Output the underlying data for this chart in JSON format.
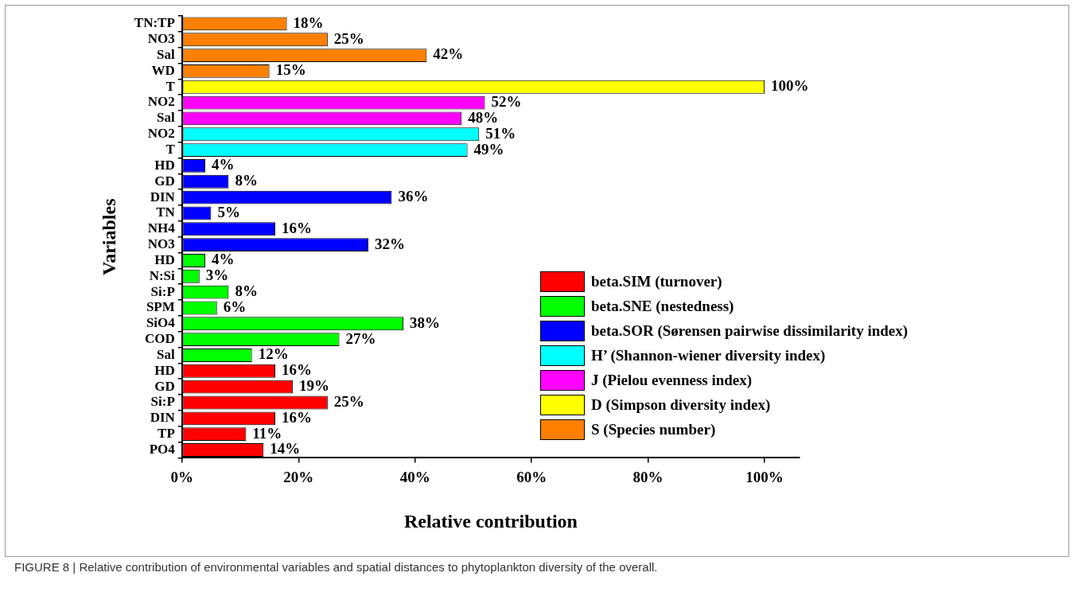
{
  "chart_data": {
    "type": "bar",
    "orientation": "horizontal",
    "stacked": true,
    "xlabel": "Relative contribution",
    "ylabel": "Variables",
    "categories": [
      "TN:TP",
      "NO3",
      "Sal",
      "WD",
      "T",
      "NO2",
      "Sal",
      "NO2",
      "T",
      "HD",
      "GD",
      "DIN",
      "TN",
      "NH4",
      "NO3",
      "HD",
      "N:Si",
      "Si:P",
      "SPM",
      "SiO4",
      "COD",
      "Sal",
      "HD",
      "GD",
      "Si:P",
      "DIN",
      "TP",
      "PO4"
    ],
    "xlim": [
      0,
      106
    ],
    "xticks": [
      {
        "value": 0,
        "label": "0%"
      },
      {
        "value": 20,
        "label": "20%"
      },
      {
        "value": 40,
        "label": "40%"
      },
      {
        "value": 60,
        "label": "60%"
      },
      {
        "value": 80,
        "label": "80%"
      },
      {
        "value": 100,
        "label": "100%"
      }
    ],
    "grid": false,
    "legend": "bottom right",
    "series": [
      {
        "name": "beta.SIM (turnover)",
        "color": "#ff0000",
        "values": [
          null,
          null,
          null,
          null,
          null,
          null,
          null,
          null,
          null,
          null,
          null,
          null,
          null,
          null,
          null,
          null,
          null,
          null,
          null,
          null,
          null,
          null,
          16,
          19,
          25,
          16,
          11,
          14
        ],
        "value_labels": [
          null,
          null,
          null,
          null,
          null,
          null,
          null,
          null,
          null,
          null,
          null,
          null,
          null,
          null,
          null,
          null,
          null,
          null,
          null,
          null,
          null,
          null,
          "16%",
          "19%",
          "25%",
          "16%",
          "11%",
          "14%"
        ]
      },
      {
        "name": "beta.SNE (nestedness)",
        "color": "#00ff00",
        "values": [
          null,
          null,
          null,
          null,
          null,
          null,
          null,
          null,
          null,
          null,
          null,
          null,
          null,
          null,
          null,
          4,
          3,
          8,
          6,
          38,
          27,
          12,
          null,
          null,
          null,
          null,
          null,
          null
        ],
        "value_labels": [
          null,
          null,
          null,
          null,
          null,
          null,
          null,
          null,
          null,
          null,
          null,
          null,
          null,
          null,
          null,
          "4%",
          "3%",
          "8%",
          "6%",
          "38%",
          "27%",
          "12%",
          null,
          null,
          null,
          null,
          null,
          null
        ]
      },
      {
        "name": "beta.SOR (Sørensen pairwise dissimilarity index)",
        "color": "#0000ff",
        "values": [
          null,
          null,
          null,
          null,
          null,
          null,
          null,
          null,
          null,
          4,
          8,
          36,
          5,
          16,
          32,
          null,
          null,
          null,
          null,
          null,
          null,
          null,
          null,
          null,
          null,
          null,
          null,
          null
        ],
        "value_labels": [
          null,
          null,
          null,
          null,
          null,
          null,
          null,
          null,
          null,
          "4%",
          "8%",
          "36%",
          "5%",
          "16%",
          "32%",
          null,
          null,
          null,
          null,
          null,
          null,
          null,
          null,
          null,
          null,
          null,
          null,
          null
        ]
      },
      {
        "name": "H’ (Shannon-wiener diversity index)",
        "color": "#00ffff",
        "values": [
          null,
          null,
          null,
          null,
          null,
          null,
          null,
          51,
          49,
          null,
          null,
          null,
          null,
          null,
          null,
          null,
          null,
          null,
          null,
          null,
          null,
          null,
          null,
          null,
          null,
          null,
          null,
          null
        ],
        "value_labels": [
          null,
          null,
          null,
          null,
          null,
          null,
          null,
          "51%",
          "49%",
          null,
          null,
          null,
          null,
          null,
          null,
          null,
          null,
          null,
          null,
          null,
          null,
          null,
          null,
          null,
          null,
          null,
          null,
          null
        ]
      },
      {
        "name": "J (Pielou evenness index)",
        "color": "#ff00ff",
        "values": [
          null,
          null,
          null,
          null,
          null,
          52,
          48,
          null,
          null,
          null,
          null,
          null,
          null,
          null,
          null,
          null,
          null,
          null,
          null,
          null,
          null,
          null,
          null,
          null,
          null,
          null,
          null,
          null
        ],
        "value_labels": [
          null,
          null,
          null,
          null,
          null,
          "52%",
          "48%",
          null,
          null,
          null,
          null,
          null,
          null,
          null,
          null,
          null,
          null,
          null,
          null,
          null,
          null,
          null,
          null,
          null,
          null,
          null,
          null,
          null
        ]
      },
      {
        "name": "D (Simpson diversity index)",
        "color": "#ffff00",
        "values": [
          null,
          null,
          null,
          null,
          100,
          null,
          null,
          null,
          null,
          null,
          null,
          null,
          null,
          null,
          null,
          null,
          null,
          null,
          null,
          null,
          null,
          null,
          null,
          null,
          null,
          null,
          null,
          null
        ],
        "value_labels": [
          null,
          null,
          null,
          null,
          "100%",
          null,
          null,
          null,
          null,
          null,
          null,
          null,
          null,
          null,
          null,
          null,
          null,
          null,
          null,
          null,
          null,
          null,
          null,
          null,
          null,
          null,
          null,
          null
        ]
      },
      {
        "name": "S (Species number)",
        "color": "#ff8000",
        "values": [
          18,
          25,
          42,
          15,
          null,
          null,
          null,
          null,
          null,
          null,
          null,
          null,
          null,
          null,
          null,
          null,
          null,
          null,
          null,
          null,
          null,
          null,
          null,
          null,
          null,
          null,
          null,
          null
        ],
        "value_labels": [
          "18%",
          "25%",
          "42%",
          "15%",
          null,
          null,
          null,
          null,
          null,
          null,
          null,
          null,
          null,
          null,
          null,
          null,
          null,
          null,
          null,
          null,
          null,
          null,
          null,
          null,
          null,
          null,
          null,
          null
        ]
      }
    ],
    "annotations": [
      "FIGURE 8 | Relative contribution of environmental variables and spatial distances to phytoplankton diversity of the overall."
    ]
  }
}
